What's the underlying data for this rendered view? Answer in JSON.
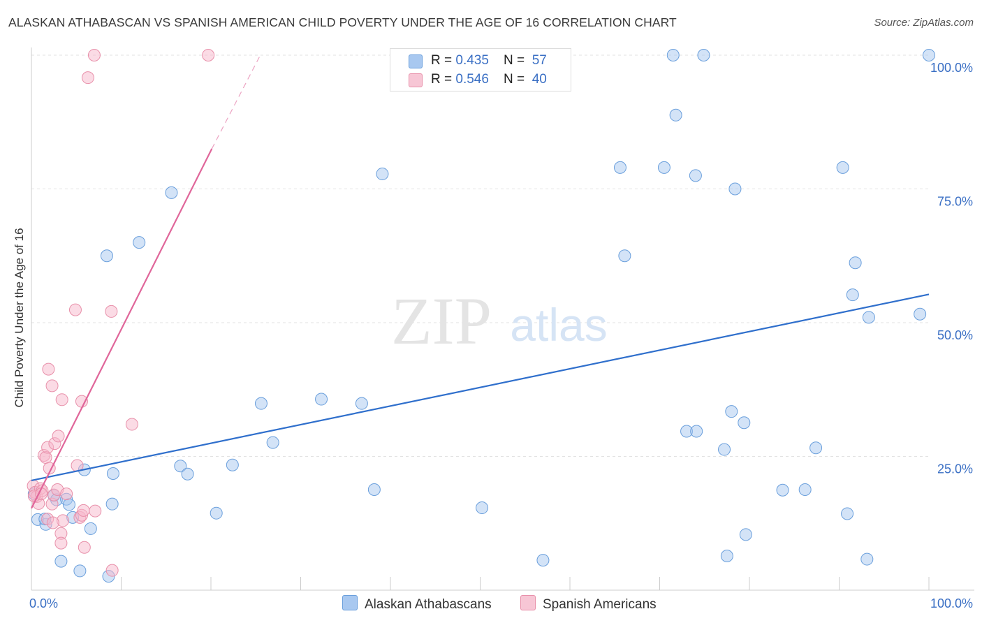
{
  "title": "ALASKAN ATHABASCAN VS SPANISH AMERICAN CHILD POVERTY UNDER THE AGE OF 16 CORRELATION CHART",
  "source": "Source: ZipAtlas.com",
  "watermark": {
    "zip": "ZIP",
    "atlas": "atlas"
  },
  "legend": {
    "rows": [
      {
        "r_label": "R = ",
        "r_value": "0.435",
        "n_label": "N = ",
        "n_value": "57",
        "color": "#a8c8f0"
      },
      {
        "r_label": "R = ",
        "r_value": "0.546",
        "n_label": "N = ",
        "n_value": "40",
        "color": "#f7b8cb"
      }
    ]
  },
  "bottom_legend": [
    {
      "label": "Alaskan Athabascans",
      "color": "#a8c8f0"
    },
    {
      "label": "Spanish Americans",
      "color": "#f7b8cb"
    }
  ],
  "chart_data": {
    "type": "scatter",
    "ylabel": "Child Poverty Under the Age of 16",
    "xlim": [
      0,
      100
    ],
    "ylim": [
      0,
      100
    ],
    "x_tick_labels": [
      "0.0%",
      "100.0%"
    ],
    "y_tick_labels": [
      "25.0%",
      "50.0%",
      "75.0%",
      "100.0%"
    ],
    "y_ticks": [
      25,
      50,
      75,
      100
    ],
    "grid": true,
    "series": [
      {
        "name": "Alaskan Athabascans",
        "color": "#a8c8f0",
        "stroke": "#6a9fdc",
        "line_color": "#2f6fcc",
        "trend": {
          "x": [
            0,
            100
          ],
          "y": [
            20.5,
            55.3
          ]
        },
        "points": [
          [
            0.7,
            13.2
          ],
          [
            1.6,
            12.3
          ],
          [
            1.5,
            13.3
          ],
          [
            2.5,
            17.7
          ],
          [
            2.8,
            16.9
          ],
          [
            3.9,
            17.0
          ],
          [
            4.2,
            16.0
          ],
          [
            4.6,
            13.6
          ],
          [
            5.9,
            22.5
          ],
          [
            6.6,
            11.5
          ],
          [
            3.3,
            5.4
          ],
          [
            5.4,
            3.6
          ],
          [
            8.4,
            62.5
          ],
          [
            8.6,
            2.6
          ],
          [
            9.1,
            21.8
          ],
          [
            9.0,
            16.1
          ],
          [
            12.0,
            65.0
          ],
          [
            15.6,
            74.3
          ],
          [
            16.6,
            23.2
          ],
          [
            17.4,
            21.7
          ],
          [
            20.6,
            14.4
          ],
          [
            22.4,
            23.4
          ],
          [
            25.6,
            34.9
          ],
          [
            26.9,
            27.6
          ],
          [
            32.3,
            35.7
          ],
          [
            36.8,
            34.9
          ],
          [
            38.2,
            18.8
          ],
          [
            39.1,
            77.8
          ],
          [
            50.2,
            15.4
          ],
          [
            57.0,
            5.6
          ],
          [
            65.6,
            79.0
          ],
          [
            66.1,
            62.5
          ],
          [
            70.5,
            79.0
          ],
          [
            71.5,
            100.0
          ],
          [
            71.8,
            88.8
          ],
          [
            73.0,
            29.7
          ],
          [
            74.1,
            29.7
          ],
          [
            74.0,
            77.5
          ],
          [
            74.9,
            100.0
          ],
          [
            77.2,
            26.3
          ],
          [
            77.5,
            6.4
          ],
          [
            78.0,
            33.4
          ],
          [
            78.4,
            75.0
          ],
          [
            79.4,
            31.3
          ],
          [
            79.6,
            10.4
          ],
          [
            83.7,
            18.7
          ],
          [
            86.2,
            18.8
          ],
          [
            87.4,
            26.6
          ],
          [
            90.4,
            79.0
          ],
          [
            90.9,
            14.3
          ],
          [
            91.5,
            55.2
          ],
          [
            91.8,
            61.2
          ],
          [
            93.1,
            5.8
          ],
          [
            93.3,
            51.0
          ],
          [
            100.0,
            100.0
          ],
          [
            99.0,
            51.6
          ],
          [
            0.3,
            18.0
          ]
        ]
      },
      {
        "name": "Spanish Americans",
        "color": "#f7b8cb",
        "stroke": "#e890aa",
        "line_color": "#e0669a",
        "trend": {
          "x": [
            0,
            20.1
          ],
          "y": [
            15.3,
            82.5
          ]
        },
        "trend_dashed": {
          "x": [
            20.1,
            25.5
          ],
          "y": [
            82.5,
            100.0
          ]
        },
        "points": [
          [
            0.2,
            19.5
          ],
          [
            0.4,
            18.3
          ],
          [
            0.6,
            17.5
          ],
          [
            0.8,
            16.2
          ],
          [
            1.0,
            19.0
          ],
          [
            1.2,
            18.6
          ],
          [
            1.4,
            25.2
          ],
          [
            1.6,
            24.8
          ],
          [
            1.8,
            26.7
          ],
          [
            1.8,
            13.3
          ],
          [
            1.9,
            41.3
          ],
          [
            2.0,
            22.8
          ],
          [
            2.3,
            38.2
          ],
          [
            2.3,
            16.1
          ],
          [
            2.5,
            17.8
          ],
          [
            2.6,
            27.4
          ],
          [
            2.9,
            18.8
          ],
          [
            3.0,
            28.8
          ],
          [
            3.3,
            10.6
          ],
          [
            3.3,
            8.8
          ],
          [
            3.4,
            35.6
          ],
          [
            3.5,
            13.0
          ],
          [
            4.9,
            52.4
          ],
          [
            5.1,
            23.3
          ],
          [
            5.4,
            13.6
          ],
          [
            5.6,
            14.0
          ],
          [
            5.6,
            35.3
          ],
          [
            5.8,
            14.9
          ],
          [
            5.9,
            8.0
          ],
          [
            6.3,
            95.8
          ],
          [
            7.0,
            100.0
          ],
          [
            7.1,
            14.8
          ],
          [
            8.9,
            52.1
          ],
          [
            9.0,
            3.7
          ],
          [
            11.2,
            31.0
          ],
          [
            19.7,
            100.0
          ],
          [
            0.3,
            17.6
          ],
          [
            1.1,
            18.0
          ],
          [
            2.4,
            12.6
          ],
          [
            3.9,
            18.0
          ]
        ]
      }
    ]
  }
}
